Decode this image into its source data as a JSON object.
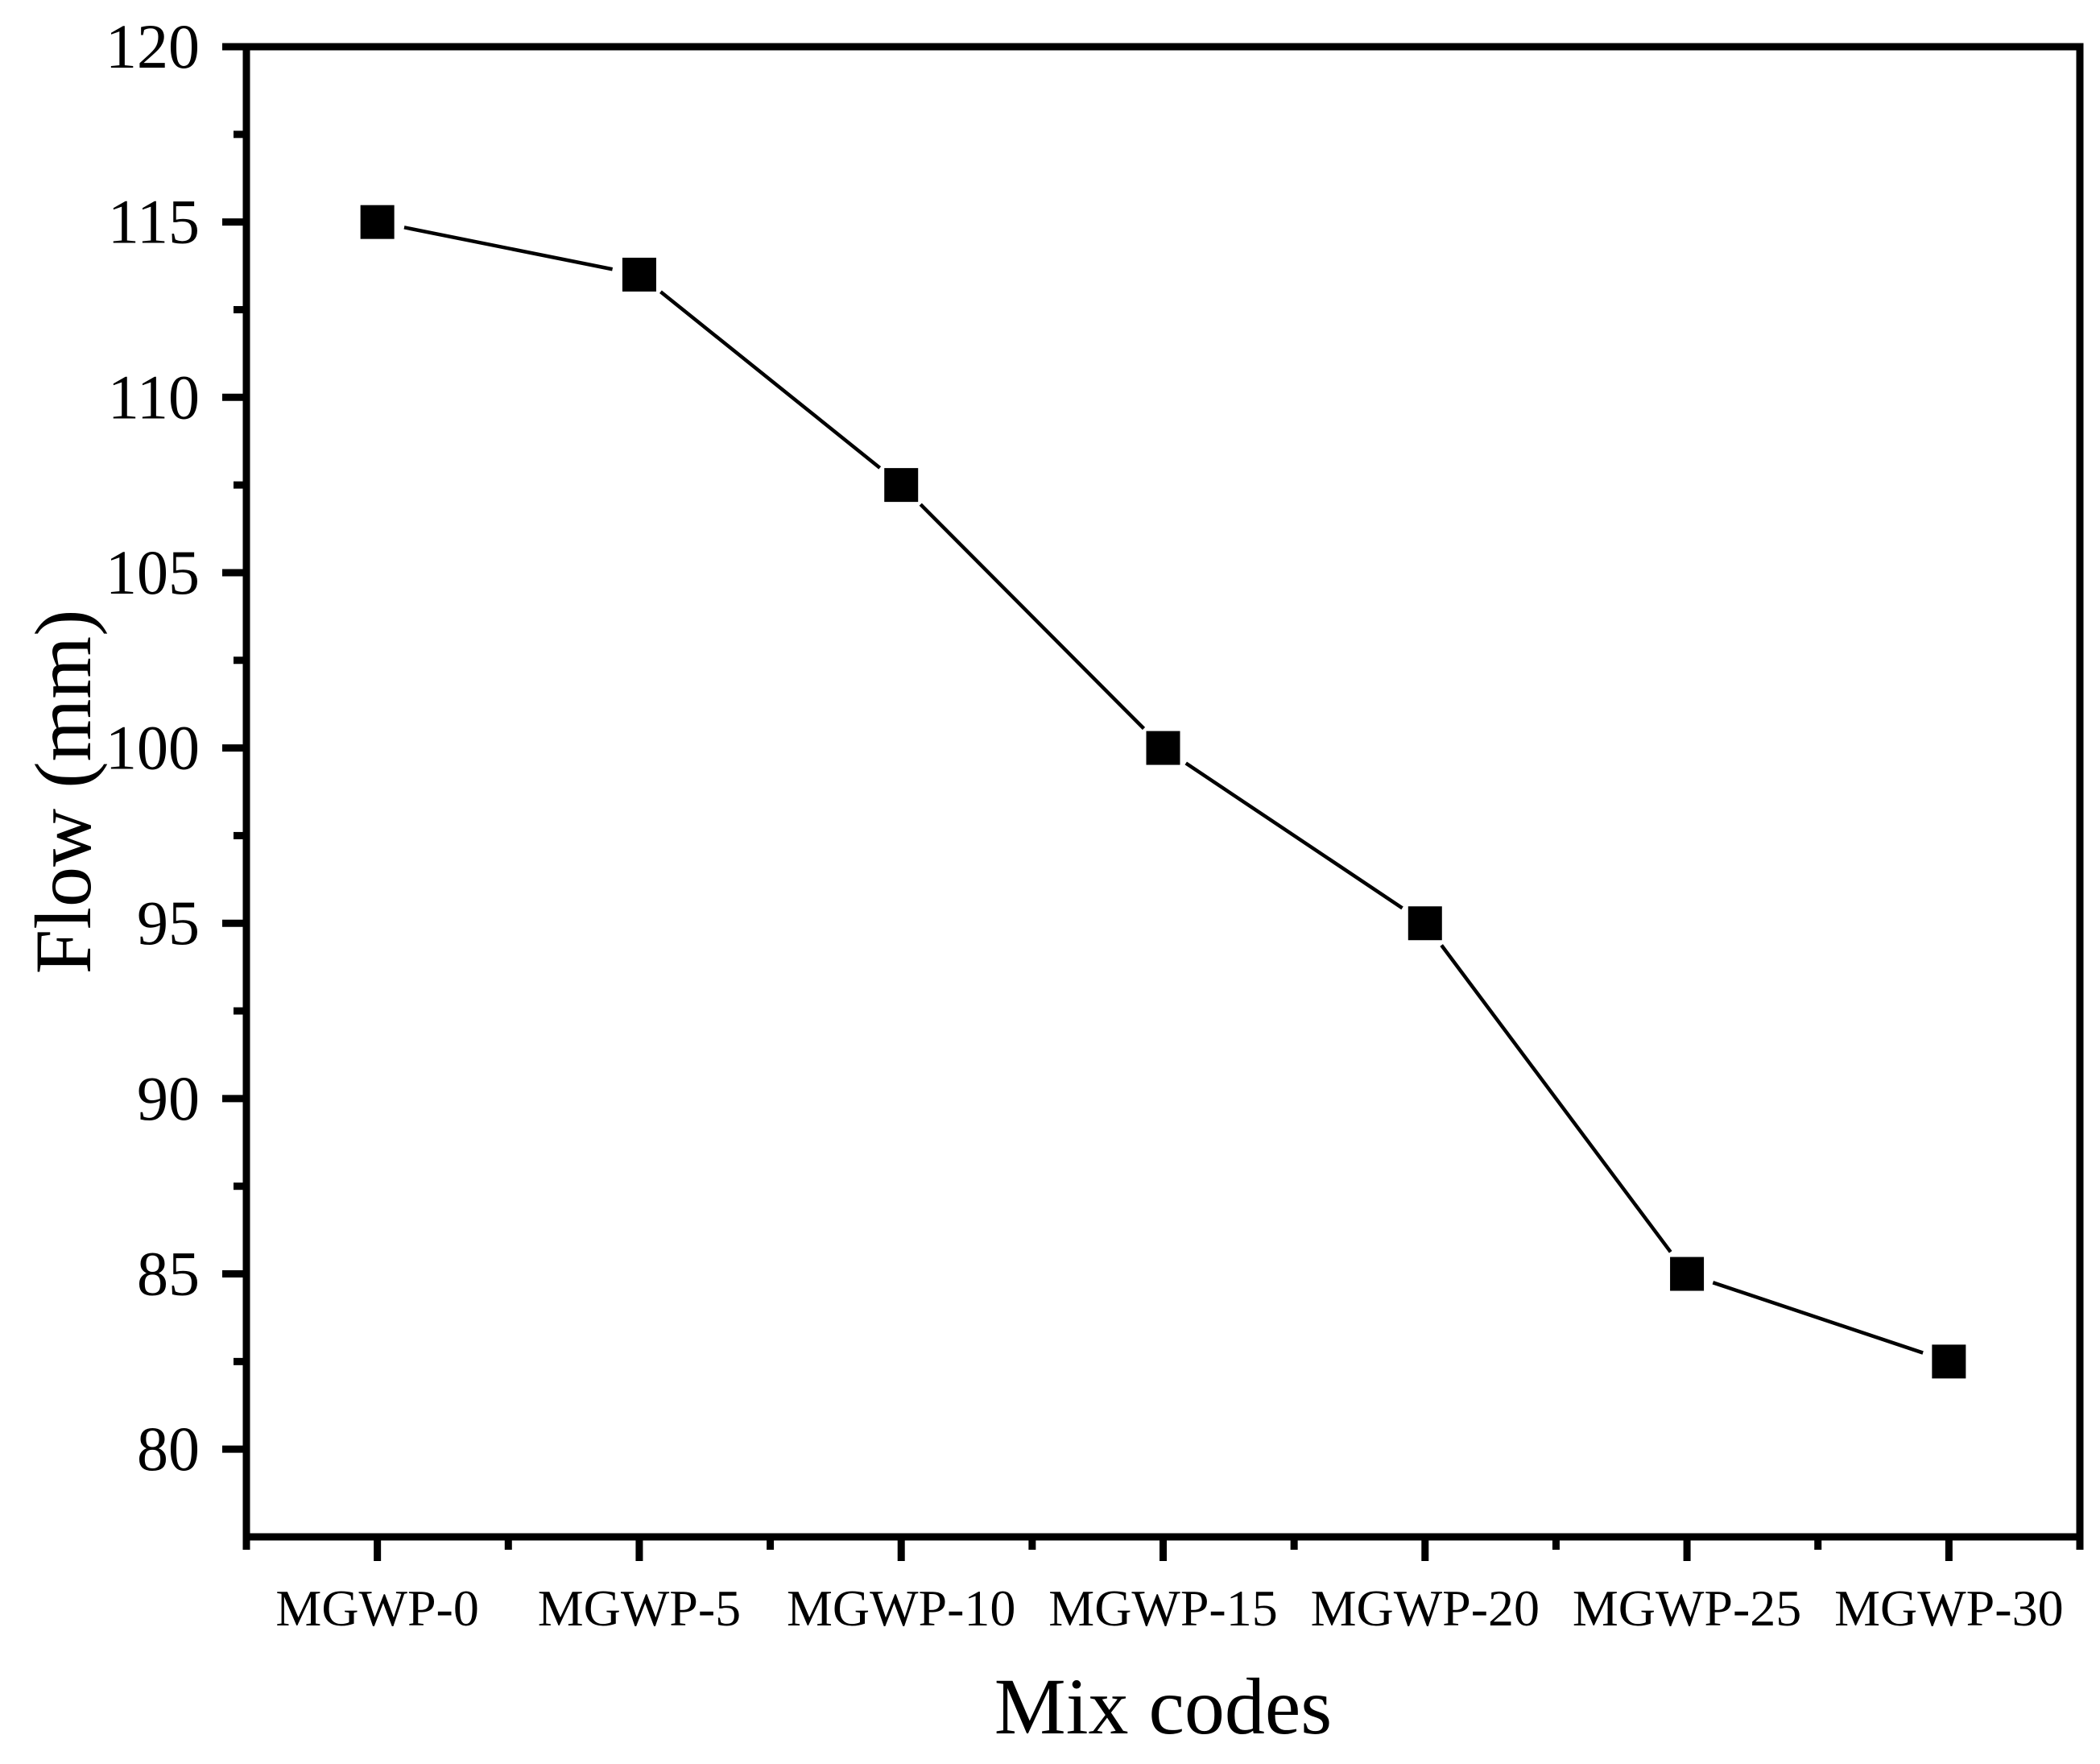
{
  "figure": {
    "background": "#ffffff",
    "ink_color": "#000000"
  },
  "chart_data": {
    "type": "line",
    "title": "",
    "xlabel": "Mix codes",
    "ylabel": "Flow (mm)",
    "categories": [
      "MGWP-0",
      "MGWP-5",
      "MGWP-10",
      "MGWP-15",
      "MGWP-20",
      "MGWP-25",
      "MGWP-30"
    ],
    "series": [
      {
        "name": "Flow",
        "values": [
          115,
          113.5,
          107.5,
          100,
          95,
          85,
          82.5
        ]
      }
    ],
    "ylim": [
      77.5,
      120
    ],
    "y_major_ticks": [
      80,
      85,
      90,
      95,
      100,
      105,
      110,
      115,
      120
    ],
    "y_minor_ticks": [
      82.5,
      87.5,
      92.5,
      97.5,
      102.5,
      107.5,
      112.5,
      117.5
    ],
    "x_minor_ticks_between_categories": true,
    "marker": "filled-square",
    "marker_color": "#000000",
    "line_color": "#000000",
    "grid": false,
    "legend_position": "none",
    "frame": "full-box",
    "tick_direction": "out"
  }
}
